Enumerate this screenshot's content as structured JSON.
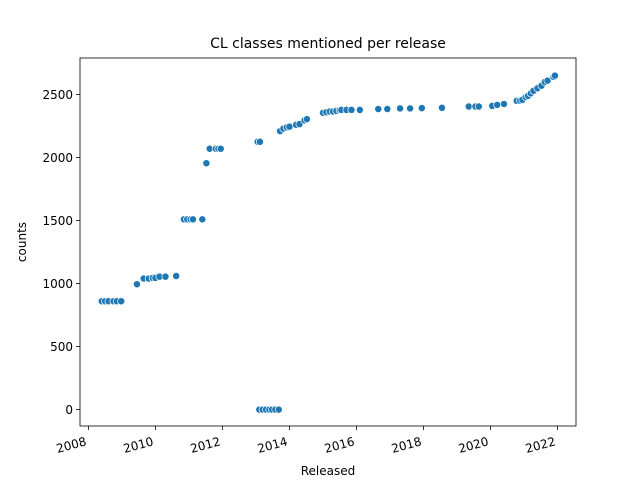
{
  "chart_data": {
    "type": "scatter",
    "title": "CL classes mentioned per release",
    "xlabel": "Released",
    "ylabel": "counts",
    "xlim": [
      2007.75,
      2022.55
    ],
    "ylim": [
      -130,
      2790
    ],
    "xticks": [
      2008,
      2010,
      2012,
      2014,
      2016,
      2018,
      2020,
      2022
    ],
    "yticks": [
      0,
      500,
      1000,
      1500,
      2000,
      2500
    ],
    "grid": false,
    "legend": "none",
    "marker_color": "#1f77b4",
    "points": [
      [
        2008.4,
        860
      ],
      [
        2008.5,
        860
      ],
      [
        2008.6,
        860
      ],
      [
        2008.75,
        860
      ],
      [
        2008.85,
        860
      ],
      [
        2008.98,
        860
      ],
      [
        2009.45,
        995
      ],
      [
        2009.65,
        1040
      ],
      [
        2009.8,
        1040
      ],
      [
        2009.92,
        1045
      ],
      [
        2010.0,
        1045
      ],
      [
        2010.12,
        1055
      ],
      [
        2010.3,
        1055
      ],
      [
        2010.62,
        1060
      ],
      [
        2010.85,
        1510
      ],
      [
        2010.95,
        1510
      ],
      [
        2011.05,
        1510
      ],
      [
        2011.12,
        1510
      ],
      [
        2011.4,
        1510
      ],
      [
        2011.52,
        1955
      ],
      [
        2011.62,
        2070
      ],
      [
        2011.8,
        2070
      ],
      [
        2011.88,
        2070
      ],
      [
        2011.95,
        2070
      ],
      [
        2013.05,
        2125
      ],
      [
        2013.12,
        2125
      ],
      [
        2013.1,
        0
      ],
      [
        2013.2,
        0
      ],
      [
        2013.3,
        0
      ],
      [
        2013.4,
        0
      ],
      [
        2013.48,
        0
      ],
      [
        2013.58,
        0
      ],
      [
        2013.68,
        0
      ],
      [
        2013.72,
        2210
      ],
      [
        2013.82,
        2230
      ],
      [
        2013.92,
        2240
      ],
      [
        2014.0,
        2245
      ],
      [
        2014.2,
        2260
      ],
      [
        2014.3,
        2265
      ],
      [
        2014.45,
        2295
      ],
      [
        2014.52,
        2305
      ],
      [
        2015.0,
        2355
      ],
      [
        2015.1,
        2360
      ],
      [
        2015.2,
        2365
      ],
      [
        2015.3,
        2365
      ],
      [
        2015.4,
        2370
      ],
      [
        2015.5,
        2375
      ],
      [
        2015.55,
        2378
      ],
      [
        2015.7,
        2378
      ],
      [
        2015.85,
        2378
      ],
      [
        2016.1,
        2378
      ],
      [
        2016.65,
        2385
      ],
      [
        2016.92,
        2385
      ],
      [
        2017.3,
        2390
      ],
      [
        2017.6,
        2390
      ],
      [
        2017.95,
        2392
      ],
      [
        2018.55,
        2395
      ],
      [
        2019.35,
        2405
      ],
      [
        2019.55,
        2405
      ],
      [
        2019.65,
        2405
      ],
      [
        2020.05,
        2410
      ],
      [
        2020.2,
        2418
      ],
      [
        2020.4,
        2425
      ],
      [
        2020.78,
        2450
      ],
      [
        2020.88,
        2452
      ],
      [
        2020.95,
        2458
      ],
      [
        2021.05,
        2480
      ],
      [
        2021.12,
        2490
      ],
      [
        2021.2,
        2510
      ],
      [
        2021.28,
        2530
      ],
      [
        2021.4,
        2550
      ],
      [
        2021.52,
        2570
      ],
      [
        2021.62,
        2600
      ],
      [
        2021.7,
        2610
      ],
      [
        2021.88,
        2640
      ],
      [
        2021.92,
        2650
      ]
    ]
  }
}
